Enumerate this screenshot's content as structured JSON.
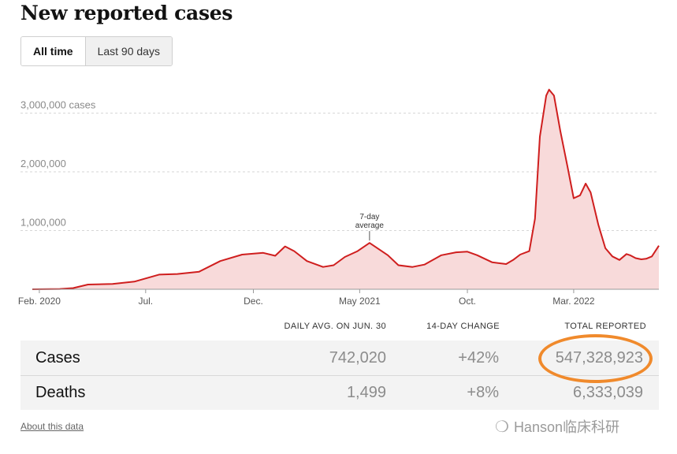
{
  "title": "New reported cases",
  "toggle": {
    "all_time": "All time",
    "last_90": "Last 90 days"
  },
  "chart_data": {
    "type": "area",
    "ylim": [
      0,
      3450000
    ],
    "y_ticks": [
      {
        "value": 1000000,
        "label": "1,000,000"
      },
      {
        "value": 2000000,
        "label": "2,000,000"
      },
      {
        "value": 3000000,
        "label": "3,000,000 cases"
      }
    ],
    "x_ticks": [
      {
        "date": "2020-02-01",
        "label": "Feb. 2020"
      },
      {
        "date": "2020-07-01",
        "label": "Jul."
      },
      {
        "date": "2020-12-01",
        "label": "Dec."
      },
      {
        "date": "2021-05-01",
        "label": "May 2021"
      },
      {
        "date": "2021-10-01",
        "label": "Oct."
      },
      {
        "date": "2022-03-01",
        "label": "Mar. 2022"
      }
    ],
    "x_range": [
      "2020-01-22",
      "2022-06-30"
    ],
    "series": [
      {
        "name": "7-day average",
        "x": [
          "2020-01-22",
          "2020-03-01",
          "2020-03-20",
          "2020-04-10",
          "2020-05-15",
          "2020-06-15",
          "2020-07-20",
          "2020-08-15",
          "2020-09-15",
          "2020-10-15",
          "2020-11-15",
          "2020-12-15",
          "2021-01-01",
          "2021-01-15",
          "2021-01-28",
          "2021-02-15",
          "2021-03-10",
          "2021-03-25",
          "2021-04-10",
          "2021-04-28",
          "2021-05-15",
          "2021-06-10",
          "2021-06-25",
          "2021-07-15",
          "2021-08-01",
          "2021-08-25",
          "2021-09-15",
          "2021-10-01",
          "2021-10-15",
          "2021-11-05",
          "2021-11-25",
          "2021-12-05",
          "2021-12-15",
          "2021-12-28",
          "2022-01-05",
          "2022-01-12",
          "2022-01-21",
          "2022-01-25",
          "2022-02-01",
          "2022-02-10",
          "2022-02-20",
          "2022-03-01",
          "2022-03-10",
          "2022-03-18",
          "2022-03-25",
          "2022-04-05",
          "2022-04-15",
          "2022-04-25",
          "2022-05-05",
          "2022-05-15",
          "2022-05-20",
          "2022-05-28",
          "2022-06-05",
          "2022-06-12",
          "2022-06-20",
          "2022-06-30"
        ],
        "y": [
          0,
          5000,
          20000,
          80000,
          90000,
          130000,
          250000,
          260000,
          300000,
          480000,
          590000,
          620000,
          570000,
          730000,
          650000,
          480000,
          380000,
          410000,
          550000,
          650000,
          790000,
          580000,
          410000,
          380000,
          420000,
          580000,
          630000,
          640000,
          580000,
          460000,
          430000,
          500000,
          590000,
          650000,
          1200000,
          2600000,
          3300000,
          3400000,
          3300000,
          2700000,
          2100000,
          1550000,
          1600000,
          1800000,
          1650000,
          1100000,
          700000,
          560000,
          500000,
          600000,
          580000,
          530000,
          510000,
          520000,
          560000,
          742020
        ]
      }
    ],
    "annotation": [
      "7-day",
      "average"
    ]
  },
  "table": {
    "headers": [
      "DAILY AVG. ON JUN. 30",
      "14-DAY CHANGE",
      "TOTAL REPORTED"
    ],
    "rows": [
      {
        "label": "Cases",
        "daily_avg": "742,020",
        "change": "+42%",
        "total": "547,328,923"
      },
      {
        "label": "Deaths",
        "daily_avg": "1,499",
        "change": "+8%",
        "total": "6,333,039"
      }
    ]
  },
  "about_link": "About this data",
  "watermark": "Hanson临床科研",
  "colors": {
    "line": "#cf1e1e",
    "fill": "#f8dada",
    "highlight": "#f08a2c"
  }
}
